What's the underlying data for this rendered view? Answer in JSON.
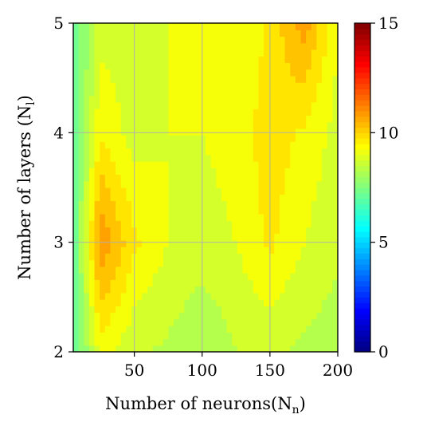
{
  "chart_data": {
    "type": "heatmap",
    "plot": "filled-contour",
    "colormap": "jet",
    "xlabel": "Number of neurons(N",
    "xlabel_sub": "n",
    "xlabel_close": ")",
    "ylabel": "Number of layers (N",
    "ylabel_sub": "l",
    "ylabel_close": ")",
    "xlim": [
      5,
      200
    ],
    "ylim": [
      2,
      5
    ],
    "x_ticks": [
      50,
      100,
      150,
      200
    ],
    "y_ticks": [
      2,
      3,
      4,
      5
    ],
    "grid": true,
    "colorbar": {
      "range": [
        0,
        15
      ],
      "ticks": [
        0,
        5,
        10,
        15
      ],
      "label": ""
    },
    "x": [
      5,
      25,
      50,
      75,
      100,
      125,
      150,
      175,
      200
    ],
    "y": [
      2,
      3,
      4,
      5
    ],
    "z": [
      [
        6.8,
        9.2,
        8.6,
        8.4,
        8.0,
        8.5,
        8.6,
        8.4,
        8.2
      ],
      [
        7.0,
        11.0,
        9.6,
        9.0,
        8.8,
        9.0,
        9.6,
        9.0,
        8.6
      ],
      [
        7.0,
        9.4,
        8.8,
        9.0,
        9.0,
        9.2,
        9.8,
        9.4,
        8.8
      ],
      [
        7.0,
        8.8,
        8.8,
        9.0,
        9.2,
        9.0,
        9.6,
        10.8,
        9.0
      ]
    ]
  }
}
